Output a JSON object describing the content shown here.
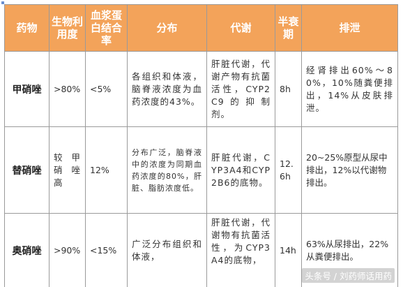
{
  "table": {
    "headers": [
      "药物",
      "生物利用度",
      "血浆蛋白结合率",
      "分布",
      "代谢",
      "半衰期",
      "排泄"
    ],
    "rows": [
      {
        "drug": "甲硝唑",
        "bioavailability": ">80%",
        "protein_binding": "<5%",
        "distribution": "各组织和体液，脑脊液浓度为血药浓度的43%。",
        "metabolism": "肝脏代谢，代谢产物有抗菌活性，CYP2C9的抑制剂。",
        "half_life": "8h",
        "excretion": "经肾排出60%～80%，10%随粪便排出，14%从皮肤排泄。"
      },
      {
        "drug": "替硝唑",
        "bioavailability": "较甲硝唑高",
        "protein_binding": "12%",
        "distribution": "分布广泛，脑脊液中的浓度为同期血药浓度的80%，肝脏、脂肪浓度低。",
        "metabolism": "肝脏代谢，CYP3A4和CYP2B6的底物。",
        "half_life": "12.6h",
        "excretion": "20~25%原型从尿中排出，12%以代谢物排出。"
      },
      {
        "drug": "奥硝唑",
        "bioavailability": ">90%",
        "protein_binding": "<15%",
        "distribution": "广泛分布组织和体液，",
        "metabolism": "肝脏代谢，代谢物有抗菌活性，为CYP3A4的底物，",
        "half_life": "14h",
        "excretion": "63%从尿排出，22%从粪便排出。"
      }
    ]
  },
  "watermark": "头条号 / 刘药师话用药",
  "colors": {
    "header_bg": "#f3a35a",
    "header_text": "#ffffff",
    "border": "#9a9a9a"
  }
}
